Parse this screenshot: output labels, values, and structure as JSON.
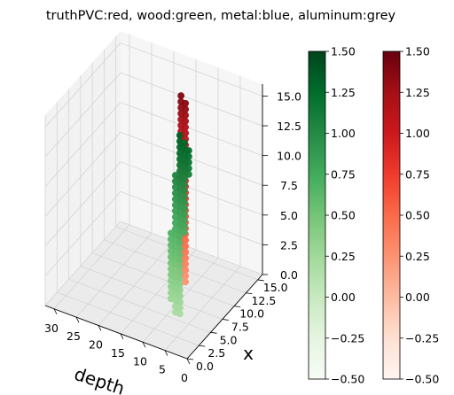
{
  "chart_data": {
    "type": "scatter",
    "title": "truthPVC:red, wood:green, metal:blue, aluminum:grey",
    "xlabel": "depth",
    "ylabel": "x",
    "zlabel": "",
    "xlim": [
      0,
      32
    ],
    "ylim": [
      0,
      16
    ],
    "zlim": [
      0,
      16
    ],
    "xticks": [
      "0",
      "5",
      "10",
      "15",
      "20",
      "25",
      "30"
    ],
    "yticks": [
      "0.0",
      "2.5",
      "5.0",
      "7.5",
      "10.0",
      "12.5",
      "15.0"
    ],
    "zticks": [
      "0.0",
      "2.5",
      "5.0",
      "7.5",
      "10.0",
      "12.5",
      "15.0"
    ],
    "grid": true,
    "series": [
      {
        "color": "#c3171c",
        "colormap": "Reds",
        "points": [
          {
            "x": 12,
            "y": 10,
            "z": 16
          },
          {
            "x": 11,
            "y": 10,
            "z": 15.5
          },
          {
            "x": 12,
            "y": 10,
            "z": 15.5
          },
          {
            "x": 11,
            "y": 10,
            "z": 15
          },
          {
            "x": 12,
            "y": 10,
            "z": 15
          },
          {
            "x": 11,
            "y": 10,
            "z": 14.5
          },
          {
            "x": 12,
            "y": 10,
            "z": 14.5
          },
          {
            "x": 11,
            "y": 10,
            "z": 14
          },
          {
            "x": 12,
            "y": 10,
            "z": 14
          },
          {
            "x": 11,
            "y": 10,
            "z": 13.5
          },
          {
            "x": 12,
            "y": 10,
            "z": 13.5
          },
          {
            "x": 11,
            "y": 10,
            "z": 13
          },
          {
            "x": 12,
            "y": 10,
            "z": 13
          },
          {
            "x": 11,
            "y": 10,
            "z": 12.5
          },
          {
            "x": 12,
            "y": 10,
            "z": 12.5
          },
          {
            "x": 11,
            "y": 10,
            "z": 12
          },
          {
            "x": 12,
            "y": 10,
            "z": 12
          },
          {
            "x": 11,
            "y": 10,
            "z": 11.5
          },
          {
            "x": 12,
            "y": 10,
            "z": 11.5
          },
          {
            "x": 11,
            "y": 10,
            "z": 11
          },
          {
            "x": 12,
            "y": 10,
            "z": 11
          },
          {
            "x": 11,
            "y": 10,
            "z": 10.5
          },
          {
            "x": 12,
            "y": 10,
            "z": 10.5
          },
          {
            "x": 11,
            "y": 10,
            "z": 10
          },
          {
            "x": 12,
            "y": 10,
            "z": 10
          },
          {
            "x": 11,
            "y": 10,
            "z": 9.5
          },
          {
            "x": 12,
            "y": 10,
            "z": 9.5
          },
          {
            "x": 11,
            "y": 10,
            "z": 9
          },
          {
            "x": 12,
            "y": 10,
            "z": 9
          },
          {
            "x": 11,
            "y": 10,
            "z": 8.5
          },
          {
            "x": 12,
            "y": 10,
            "z": 8.5
          },
          {
            "x": 11,
            "y": 10,
            "z": 8
          },
          {
            "x": 12,
            "y": 10,
            "z": 8
          },
          {
            "x": 11,
            "y": 10,
            "z": 7.5
          },
          {
            "x": 12,
            "y": 10,
            "z": 7.5
          },
          {
            "x": 11,
            "y": 10,
            "z": 7
          },
          {
            "x": 12,
            "y": 10,
            "z": 7
          },
          {
            "x": 11,
            "y": 10,
            "z": 6.5
          },
          {
            "x": 12,
            "y": 10,
            "z": 6.5
          },
          {
            "x": 11,
            "y": 10,
            "z": 6
          },
          {
            "x": 12,
            "y": 10,
            "z": 6
          },
          {
            "x": 11,
            "y": 10,
            "z": 5.5
          },
          {
            "x": 12,
            "y": 10,
            "z": 5.5
          },
          {
            "x": 11,
            "y": 10,
            "z": 5
          },
          {
            "x": 12,
            "y": 10,
            "z": 5
          },
          {
            "x": 11,
            "y": 10,
            "z": 4.5
          },
          {
            "x": 12,
            "y": 10,
            "z": 4.5
          },
          {
            "x": 11,
            "y": 10,
            "z": 4
          },
          {
            "x": 12,
            "y": 10,
            "z": 4
          },
          {
            "x": 11,
            "y": 10,
            "z": 3.5
          },
          {
            "x": 12,
            "y": 10,
            "z": 3.5
          },
          {
            "x": 11,
            "y": 10,
            "z": 3
          },
          {
            "x": 12,
            "y": 10,
            "z": 3
          },
          {
            "x": 11,
            "y": 10,
            "z": 2.5
          },
          {
            "x": 12,
            "y": 10,
            "z": 2.5
          },
          {
            "x": 11,
            "y": 10,
            "z": 2
          },
          {
            "x": 12,
            "y": 10,
            "z": 2
          },
          {
            "x": 11,
            "y": 10,
            "z": 1.5
          },
          {
            "x": 12,
            "y": 10,
            "z": 1.5
          },
          {
            "x": 11,
            "y": 10,
            "z": 1
          },
          {
            "x": 12,
            "y": 10,
            "z": 1
          },
          {
            "x": 11,
            "y": 10,
            "z": 0.5
          }
        ]
      },
      {
        "color": "#238b45",
        "colormap": "Greens",
        "points": [
          {
            "x": 8,
            "y": 6,
            "z": 15
          },
          {
            "x": 7,
            "y": 6,
            "z": 14.5
          },
          {
            "x": 8,
            "y": 6,
            "z": 14.5
          },
          {
            "x": 6,
            "y": 6,
            "z": 14
          },
          {
            "x": 7,
            "y": 6,
            "z": 14
          },
          {
            "x": 8,
            "y": 6,
            "z": 14
          },
          {
            "x": 6,
            "y": 6,
            "z": 13.5
          },
          {
            "x": 7,
            "y": 6,
            "z": 13.5
          },
          {
            "x": 8,
            "y": 6,
            "z": 13.5
          },
          {
            "x": 6,
            "y": 6,
            "z": 13
          },
          {
            "x": 7,
            "y": 6,
            "z": 13
          },
          {
            "x": 8,
            "y": 6,
            "z": 13
          },
          {
            "x": 6,
            "y": 6,
            "z": 12.5
          },
          {
            "x": 7,
            "y": 6,
            "z": 12.5
          },
          {
            "x": 8,
            "y": 6,
            "z": 12.5
          },
          {
            "x": 6,
            "y": 6,
            "z": 12
          },
          {
            "x": 7,
            "y": 6,
            "z": 12
          },
          {
            "x": 8,
            "y": 6,
            "z": 12
          },
          {
            "x": 7,
            "y": 6,
            "z": 11.5
          },
          {
            "x": 8,
            "y": 6,
            "z": 11.5
          },
          {
            "x": 9,
            "y": 6,
            "z": 11.5
          },
          {
            "x": 7,
            "y": 6,
            "z": 11
          },
          {
            "x": 8,
            "y": 6,
            "z": 11
          },
          {
            "x": 9,
            "y": 6,
            "z": 11
          },
          {
            "x": 7,
            "y": 6,
            "z": 10.5
          },
          {
            "x": 8,
            "y": 6,
            "z": 10.5
          },
          {
            "x": 9,
            "y": 6,
            "z": 10.5
          },
          {
            "x": 7,
            "y": 6,
            "z": 10
          },
          {
            "x": 8,
            "y": 6,
            "z": 10
          },
          {
            "x": 9,
            "y": 6,
            "z": 10
          },
          {
            "x": 7,
            "y": 6,
            "z": 9.5
          },
          {
            "x": 8,
            "y": 6,
            "z": 9.5
          },
          {
            "x": 9,
            "y": 6,
            "z": 9.5
          },
          {
            "x": 7,
            "y": 6,
            "z": 9
          },
          {
            "x": 8,
            "y": 6,
            "z": 9
          },
          {
            "x": 9,
            "y": 6,
            "z": 9
          },
          {
            "x": 7,
            "y": 6,
            "z": 8.5
          },
          {
            "x": 8,
            "y": 6,
            "z": 8.5
          },
          {
            "x": 9,
            "y": 6,
            "z": 8.5
          },
          {
            "x": 7,
            "y": 6,
            "z": 8
          },
          {
            "x": 8,
            "y": 6,
            "z": 8
          },
          {
            "x": 9,
            "y": 6,
            "z": 8
          },
          {
            "x": 7,
            "y": 6,
            "z": 7.5
          },
          {
            "x": 8,
            "y": 6,
            "z": 7.5
          },
          {
            "x": 9,
            "y": 6,
            "z": 7.5
          },
          {
            "x": 7,
            "y": 6,
            "z": 7
          },
          {
            "x": 8,
            "y": 6,
            "z": 7
          },
          {
            "x": 9,
            "y": 6,
            "z": 7
          },
          {
            "x": 8,
            "y": 6,
            "z": 6.5
          },
          {
            "x": 9,
            "y": 6,
            "z": 6.5
          },
          {
            "x": 10,
            "y": 6,
            "z": 6.5
          },
          {
            "x": 8,
            "y": 6,
            "z": 6
          },
          {
            "x": 9,
            "y": 6,
            "z": 6
          },
          {
            "x": 10,
            "y": 6,
            "z": 6
          },
          {
            "x": 8,
            "y": 6,
            "z": 5.5
          },
          {
            "x": 9,
            "y": 6,
            "z": 5.5
          },
          {
            "x": 10,
            "y": 6,
            "z": 5.5
          },
          {
            "x": 8,
            "y": 6,
            "z": 5
          },
          {
            "x": 9,
            "y": 6,
            "z": 5
          },
          {
            "x": 10,
            "y": 6,
            "z": 5
          },
          {
            "x": 8,
            "y": 6,
            "z": 4.5
          },
          {
            "x": 9,
            "y": 6,
            "z": 4.5
          },
          {
            "x": 10,
            "y": 6,
            "z": 4.5
          },
          {
            "x": 8,
            "y": 6,
            "z": 4
          },
          {
            "x": 9,
            "y": 6,
            "z": 4
          },
          {
            "x": 10,
            "y": 6,
            "z": 4
          },
          {
            "x": 8,
            "y": 6,
            "z": 3.5
          },
          {
            "x": 9,
            "y": 6,
            "z": 3.5
          },
          {
            "x": 10,
            "y": 6,
            "z": 3.5
          },
          {
            "x": 8,
            "y": 6,
            "z": 3
          },
          {
            "x": 9,
            "y": 6,
            "z": 3
          },
          {
            "x": 10,
            "y": 6,
            "z": 3
          },
          {
            "x": 8,
            "y": 6,
            "z": 2.5
          },
          {
            "x": 9,
            "y": 6,
            "z": 2.5
          },
          {
            "x": 10,
            "y": 6,
            "z": 2.5
          },
          {
            "x": 8,
            "y": 6,
            "z": 2
          },
          {
            "x": 9,
            "y": 6,
            "z": 2
          },
          {
            "x": 10,
            "y": 6,
            "z": 2
          },
          {
            "x": 8,
            "y": 6,
            "z": 1.5
          },
          {
            "x": 9,
            "y": 6,
            "z": 1.5
          },
          {
            "x": 10,
            "y": 6,
            "z": 1.5
          },
          {
            "x": 8,
            "y": 6,
            "z": 1
          },
          {
            "x": 9,
            "y": 6,
            "z": 1
          },
          {
            "x": 10,
            "y": 6,
            "z": 1
          },
          {
            "x": 8,
            "y": 6,
            "z": 0.5
          },
          {
            "x": 9,
            "y": 6,
            "z": 0.5
          },
          {
            "x": 8,
            "y": 6,
            "z": 0
          },
          {
            "x": 9,
            "y": 6,
            "z": 0
          }
        ]
      }
    ],
    "colorbars": [
      {
        "colormap": "Greens",
        "range": [
          -0.5,
          1.5
        ],
        "ticks": [
          "1.50",
          "1.25",
          "1.00",
          "0.75",
          "0.50",
          "0.25",
          "0.00",
          "−0.25",
          "−0.50"
        ],
        "colors": [
          "#f7fcf5",
          "#e5f5e0",
          "#c7e9c0",
          "#a1d99b",
          "#74c476",
          "#41ab5d",
          "#238b45",
          "#006d2c",
          "#00441b"
        ]
      },
      {
        "colormap": "Reds",
        "range": [
          -0.5,
          1.5
        ],
        "ticks": [
          "1.50",
          "1.25",
          "1.00",
          "0.75",
          "0.50",
          "0.25",
          "0.00",
          "−0.25",
          "−0.50"
        ],
        "colors": [
          "#fff5f0",
          "#fee0d2",
          "#fcbba1",
          "#fc9272",
          "#fb6a4a",
          "#ef3b2c",
          "#cb181d",
          "#a50f15",
          "#67000d"
        ]
      }
    ]
  }
}
